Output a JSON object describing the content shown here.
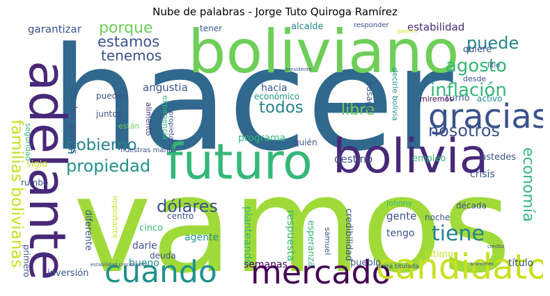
{
  "title": "Nube de palabras - Jorge Tuto Quiroga Ramírez",
  "colors": {
    "c1": "#31688e",
    "c2": "#a0da39",
    "c3": "#440154",
    "c4": "#3b528b",
    "c5": "#35b779",
    "c6": "#21918c",
    "c7": "#6ece58",
    "c8": "#fde725",
    "c9": "#1f9e89",
    "c10": "#482878",
    "c11": "#26828e",
    "c12": "#c8e020"
  },
  "words": [
    {
      "text": "hacer",
      "color": "c1"
    },
    {
      "text": "vamos",
      "color": "c2"
    },
    {
      "text": "boliviano",
      "color": "c7"
    },
    {
      "text": "bolivia",
      "color": "c10"
    },
    {
      "text": "futuro",
      "color": "c5"
    },
    {
      "text": "adelante",
      "color": "c10"
    },
    {
      "text": "mercado",
      "color": "c3"
    },
    {
      "text": "candidato",
      "color": "c12"
    },
    {
      "text": "cuando",
      "color": "c6"
    },
    {
      "text": "gracias",
      "color": "c4"
    },
    {
      "text": "familias bolivianas",
      "color": "c12"
    },
    {
      "text": "propiedad",
      "color": "c6"
    },
    {
      "text": "dólares",
      "color": "c4"
    },
    {
      "text": "inflación",
      "color": "c5"
    },
    {
      "text": "nosotros",
      "color": "c4"
    },
    {
      "text": "agosto",
      "color": "c5"
    },
    {
      "text": "tiene",
      "color": "c11"
    },
    {
      "text": "economía",
      "color": "c5"
    },
    {
      "text": "gobierno",
      "color": "c11"
    },
    {
      "text": "estamos",
      "color": "c4"
    },
    {
      "text": "tenemos",
      "color": "c4"
    },
    {
      "text": "porque",
      "color": "c7"
    },
    {
      "text": "todos",
      "color": "c11"
    },
    {
      "text": "puede",
      "color": "c11"
    },
    {
      "text": "libre",
      "color": "c7"
    },
    {
      "text": "estabilidad",
      "color": "c10"
    },
    {
      "text": "garantizar",
      "color": "c4"
    },
    {
      "text": "alcalde",
      "color": "c11"
    },
    {
      "text": "responder",
      "color": "c4"
    },
    {
      "text": "tener",
      "color": "c4"
    },
    {
      "text": "hacia",
      "color": "c4"
    },
    {
      "text": "económico",
      "color": "c6"
    },
    {
      "text": "angustia",
      "color": "c4"
    },
    {
      "text": "programa",
      "color": "c5"
    },
    {
      "text": "destino",
      "color": "c4"
    },
    {
      "text": "quién",
      "color": "c4"
    },
    {
      "text": "turno",
      "color": "c4"
    },
    {
      "text": "activo",
      "color": "c6"
    },
    {
      "text": "miremos",
      "color": "c3"
    },
    {
      "text": "desde",
      "color": "c4"
    },
    {
      "text": "quiere",
      "color": "c4"
    },
    {
      "text": "litio",
      "color": "c4"
    },
    {
      "text": "empleo",
      "color": "c5"
    },
    {
      "text": "ustedes",
      "color": "c4"
    },
    {
      "text": "siglo",
      "color": "c12"
    },
    {
      "text": "rumbo",
      "color": "c4"
    },
    {
      "text": "crisis",
      "color": "c4"
    },
    {
      "text": "gente",
      "color": "c4"
    },
    {
      "text": "tengo",
      "color": "c4"
    },
    {
      "text": "noche",
      "color": "c4"
    },
    {
      "text": "johnny",
      "color": "c5"
    },
    {
      "text": "década",
      "color": "c4"
    },
    {
      "text": "agente",
      "color": "c6"
    },
    {
      "text": "darle",
      "color": "c4"
    },
    {
      "text": "deuda",
      "color": "c4"
    },
    {
      "text": "bueno",
      "color": "c6"
    },
    {
      "text": "semanas",
      "color": "c3"
    },
    {
      "text": "pueblo",
      "color": "c4"
    },
    {
      "text": "último",
      "color": "c12"
    },
    {
      "text": "título",
      "color": "c4"
    },
    {
      "text": "inversión",
      "color": "c4"
    },
    {
      "text": "primero",
      "color": "c4"
    },
    {
      "text": "cinco",
      "color": "c5"
    },
    {
      "text": "centro",
      "color": "c4"
    },
    {
      "text": "pueden",
      "color": "c4"
    },
    {
      "text": "juntos",
      "color": "c4"
    },
    {
      "text": "están",
      "color": "c7"
    },
    {
      "text": "alimento",
      "color": "c10"
    },
    {
      "text": "experiencia",
      "color": "c5"
    },
    {
      "text": "propietarios",
      "color": "c4"
    },
    {
      "text": "muchas gracias",
      "color": "c4"
    },
    {
      "text": "seguridad",
      "color": "c5"
    },
    {
      "text": "diferente",
      "color": "c4"
    },
    {
      "text": "importante",
      "color": "c12"
    },
    {
      "text": "planteando",
      "color": "c5"
    },
    {
      "text": "respuesta",
      "color": "c5"
    },
    {
      "text": "esperanza",
      "color": "c5"
    },
    {
      "text": "samuel",
      "color": "c4"
    },
    {
      "text": "credibilidad",
      "color": "c4"
    },
    {
      "text": "pasado",
      "color": "c4"
    },
    {
      "text": "decirle bolivia",
      "color": "c6"
    },
    {
      "text": "nuestras manos",
      "color": "c4"
    },
    {
      "text": "tierra titulada",
      "color": "c4"
    },
    {
      "text": "gasolina",
      "color": "c12"
    },
    {
      "text": "estabilidad crecimiento",
      "color": "c4"
    },
    {
      "text": "aranceles",
      "color": "c4"
    },
    {
      "text": "presidente",
      "color": "c4"
    },
    {
      "text": "crédito",
      "color": "c4"
    }
  ]
}
